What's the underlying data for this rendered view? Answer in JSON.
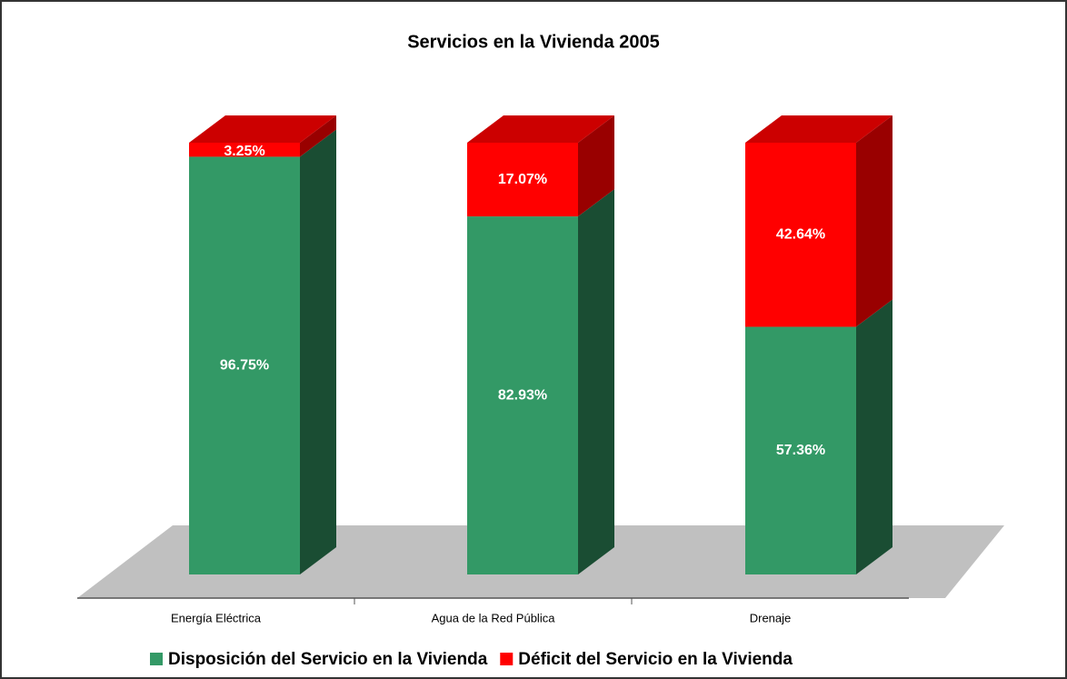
{
  "chart_data": {
    "type": "bar",
    "stacked": true,
    "title": "Servicios en la Vivienda 2005",
    "categories": [
      "Energía Eléctrica",
      "Agua de la Red Pública",
      "Drenaje"
    ],
    "series": [
      {
        "name": "Disposición del Servicio en la Vivienda",
        "color": "#339966",
        "values": [
          96.75,
          82.93,
          57.36
        ],
        "value_labels": [
          "96.75%",
          "82.93%",
          "57.36%"
        ]
      },
      {
        "name": "Déficit del Servicio en la Vivienda",
        "color": "#ff0000",
        "values": [
          3.25,
          17.07,
          42.64
        ],
        "value_labels": [
          "3.25%",
          "17.07%",
          "42.64%"
        ]
      }
    ],
    "legend": "bottom"
  }
}
